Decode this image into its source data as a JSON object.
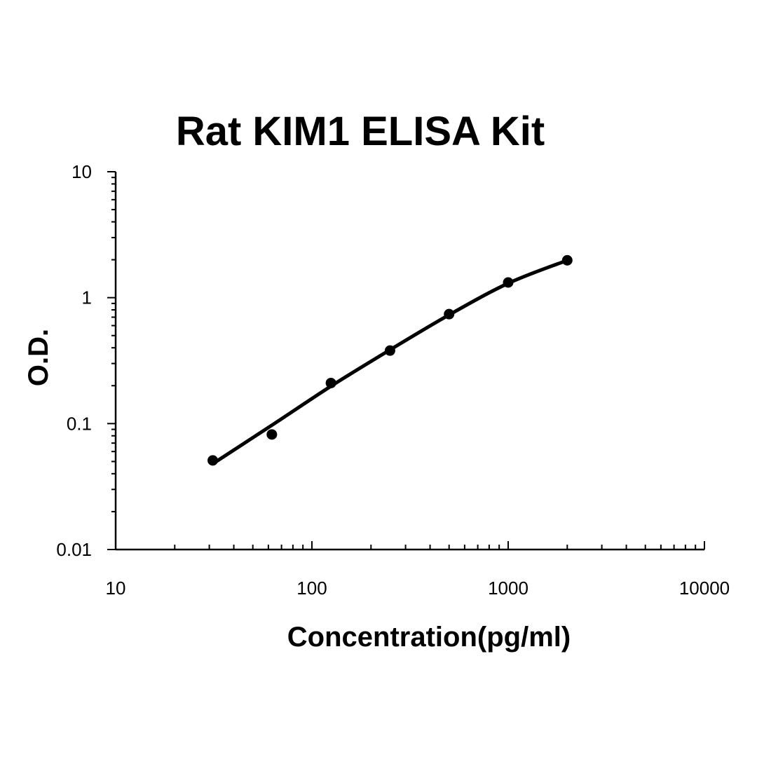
{
  "chart_data": {
    "type": "scatter",
    "title": "Rat KIM1 ELISA Kit",
    "xlabel": "Concentration(pg/ml)",
    "ylabel": "O.D.",
    "x_scale": "log",
    "y_scale": "log",
    "xlim": [
      10,
      10000
    ],
    "ylim": [
      0.01,
      10
    ],
    "x_ticks": [
      "10",
      "100",
      "1000",
      "10000"
    ],
    "y_ticks": [
      "10",
      "1",
      "0.1",
      "0.01"
    ],
    "grid": false,
    "series": [
      {
        "x": [
          31.25,
          62.5,
          125,
          250,
          500,
          1000,
          2000
        ],
        "y": [
          0.051,
          0.082,
          0.21,
          0.38,
          0.74,
          1.32,
          1.98
        ]
      }
    ],
    "fit_curve": {
      "x": [
        31.25,
        62.5,
        125,
        250,
        500,
        1000,
        2000
      ],
      "y": [
        0.048,
        0.097,
        0.198,
        0.385,
        0.73,
        1.3,
        1.98
      ]
    },
    "colors": {
      "curve": "#000000",
      "points": "#000000",
      "axes": "#000000"
    }
  }
}
